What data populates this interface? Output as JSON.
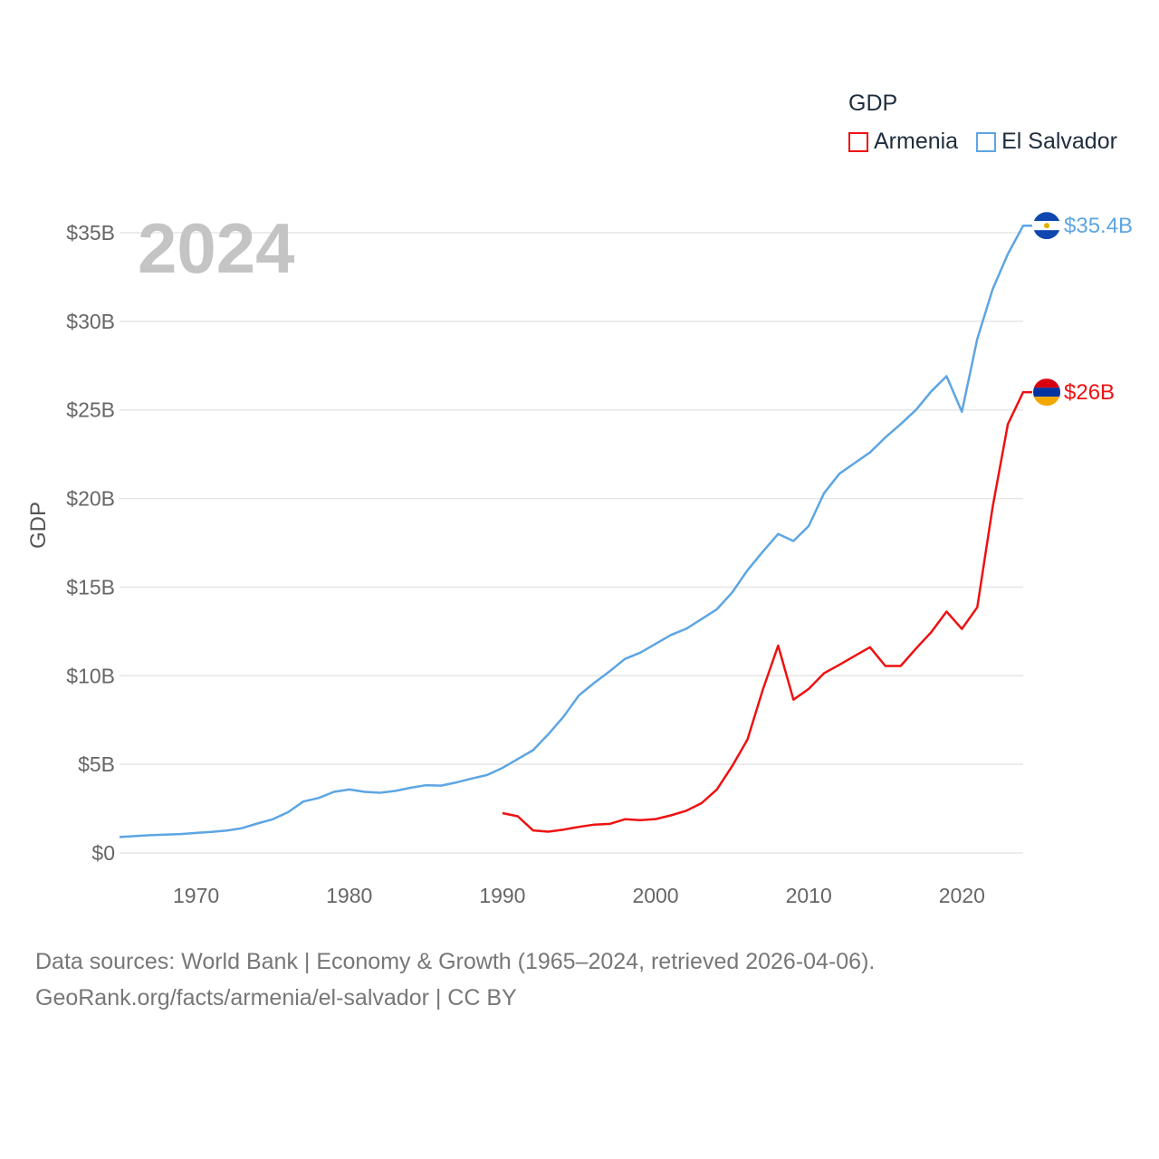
{
  "legend": {
    "title": "GDP",
    "items": [
      {
        "name": "Armenia",
        "color": "#ee1111"
      },
      {
        "name": "El Salvador",
        "color": "#5da5e3"
      }
    ]
  },
  "source": {
    "line1": "Data sources: World Bank | Economy & Growth (1965–2024, retrieved 2026-04-06).",
    "line2": "GeoRank.org/facts/armenia/el-salvador | CC BY"
  },
  "chart_data": {
    "type": "line",
    "title": "GDP",
    "year_label": "2024",
    "ylabel": "GDP",
    "xlabel": "",
    "xlim": [
      1965,
      2024
    ],
    "ylim": [
      0,
      35
    ],
    "x_ticks": [
      "1970",
      "1980",
      "1990",
      "2000",
      "2010",
      "2020"
    ],
    "y_ticks": [
      "$0",
      "$5B",
      "$10B",
      "$15B",
      "$20B",
      "$25B",
      "$30B",
      "$35B"
    ],
    "grid": true,
    "series": [
      {
        "name": "El Salvador",
        "color": "#5da5e3",
        "end_label": "$35.4B",
        "points": [
          [
            1965,
            0.9
          ],
          [
            1966,
            0.95
          ],
          [
            1967,
            1.0
          ],
          [
            1968,
            1.03
          ],
          [
            1969,
            1.07
          ],
          [
            1970,
            1.13
          ],
          [
            1971,
            1.19
          ],
          [
            1972,
            1.26
          ],
          [
            1973,
            1.4
          ],
          [
            1974,
            1.66
          ],
          [
            1975,
            1.9
          ],
          [
            1976,
            2.3
          ],
          [
            1977,
            2.9
          ],
          [
            1978,
            3.1
          ],
          [
            1979,
            3.45
          ],
          [
            1980,
            3.58
          ],
          [
            1981,
            3.45
          ],
          [
            1982,
            3.4
          ],
          [
            1983,
            3.5
          ],
          [
            1984,
            3.68
          ],
          [
            1985,
            3.82
          ],
          [
            1986,
            3.8
          ],
          [
            1987,
            3.98
          ],
          [
            1988,
            4.2
          ],
          [
            1989,
            4.4
          ],
          [
            1990,
            4.8
          ],
          [
            1991,
            5.3
          ],
          [
            1992,
            5.8
          ],
          [
            1993,
            6.7
          ],
          [
            1994,
            7.7
          ],
          [
            1995,
            8.9
          ],
          [
            1996,
            9.6
          ],
          [
            1997,
            10.25
          ],
          [
            1998,
            10.95
          ],
          [
            1999,
            11.3
          ],
          [
            2000,
            11.8
          ],
          [
            2001,
            12.3
          ],
          [
            2002,
            12.65
          ],
          [
            2003,
            13.2
          ],
          [
            2004,
            13.75
          ],
          [
            2005,
            14.7
          ],
          [
            2006,
            15.95
          ],
          [
            2007,
            17.0
          ],
          [
            2008,
            18.0
          ],
          [
            2009,
            17.6
          ],
          [
            2010,
            18.45
          ],
          [
            2011,
            20.3
          ],
          [
            2012,
            21.4
          ],
          [
            2013,
            22.0
          ],
          [
            2014,
            22.6
          ],
          [
            2015,
            23.45
          ],
          [
            2016,
            24.2
          ],
          [
            2017,
            25.0
          ],
          [
            2018,
            26.05
          ],
          [
            2019,
            26.9
          ],
          [
            2020,
            24.9
          ],
          [
            2021,
            29.0
          ],
          [
            2022,
            31.8
          ],
          [
            2023,
            33.8
          ],
          [
            2024,
            35.4
          ]
        ]
      },
      {
        "name": "Armenia",
        "color": "#ee1111",
        "end_label": "$26B",
        "points": [
          [
            1990,
            2.25
          ],
          [
            1991,
            2.07
          ],
          [
            1992,
            1.27
          ],
          [
            1993,
            1.2
          ],
          [
            1994,
            1.32
          ],
          [
            1995,
            1.47
          ],
          [
            1996,
            1.6
          ],
          [
            1997,
            1.64
          ],
          [
            1998,
            1.9
          ],
          [
            1999,
            1.85
          ],
          [
            2000,
            1.91
          ],
          [
            2001,
            2.12
          ],
          [
            2002,
            2.38
          ],
          [
            2003,
            2.81
          ],
          [
            2004,
            3.58
          ],
          [
            2005,
            4.9
          ],
          [
            2006,
            6.4
          ],
          [
            2007,
            9.2
          ],
          [
            2008,
            11.7
          ],
          [
            2009,
            8.65
          ],
          [
            2010,
            9.26
          ],
          [
            2011,
            10.14
          ],
          [
            2012,
            10.62
          ],
          [
            2013,
            11.12
          ],
          [
            2014,
            11.61
          ],
          [
            2015,
            10.55
          ],
          [
            2016,
            10.55
          ],
          [
            2017,
            11.53
          ],
          [
            2018,
            12.46
          ],
          [
            2019,
            13.62
          ],
          [
            2020,
            12.64
          ],
          [
            2021,
            13.86
          ],
          [
            2022,
            19.5
          ],
          [
            2023,
            24.2
          ],
          [
            2024,
            26.0
          ]
        ]
      }
    ]
  }
}
